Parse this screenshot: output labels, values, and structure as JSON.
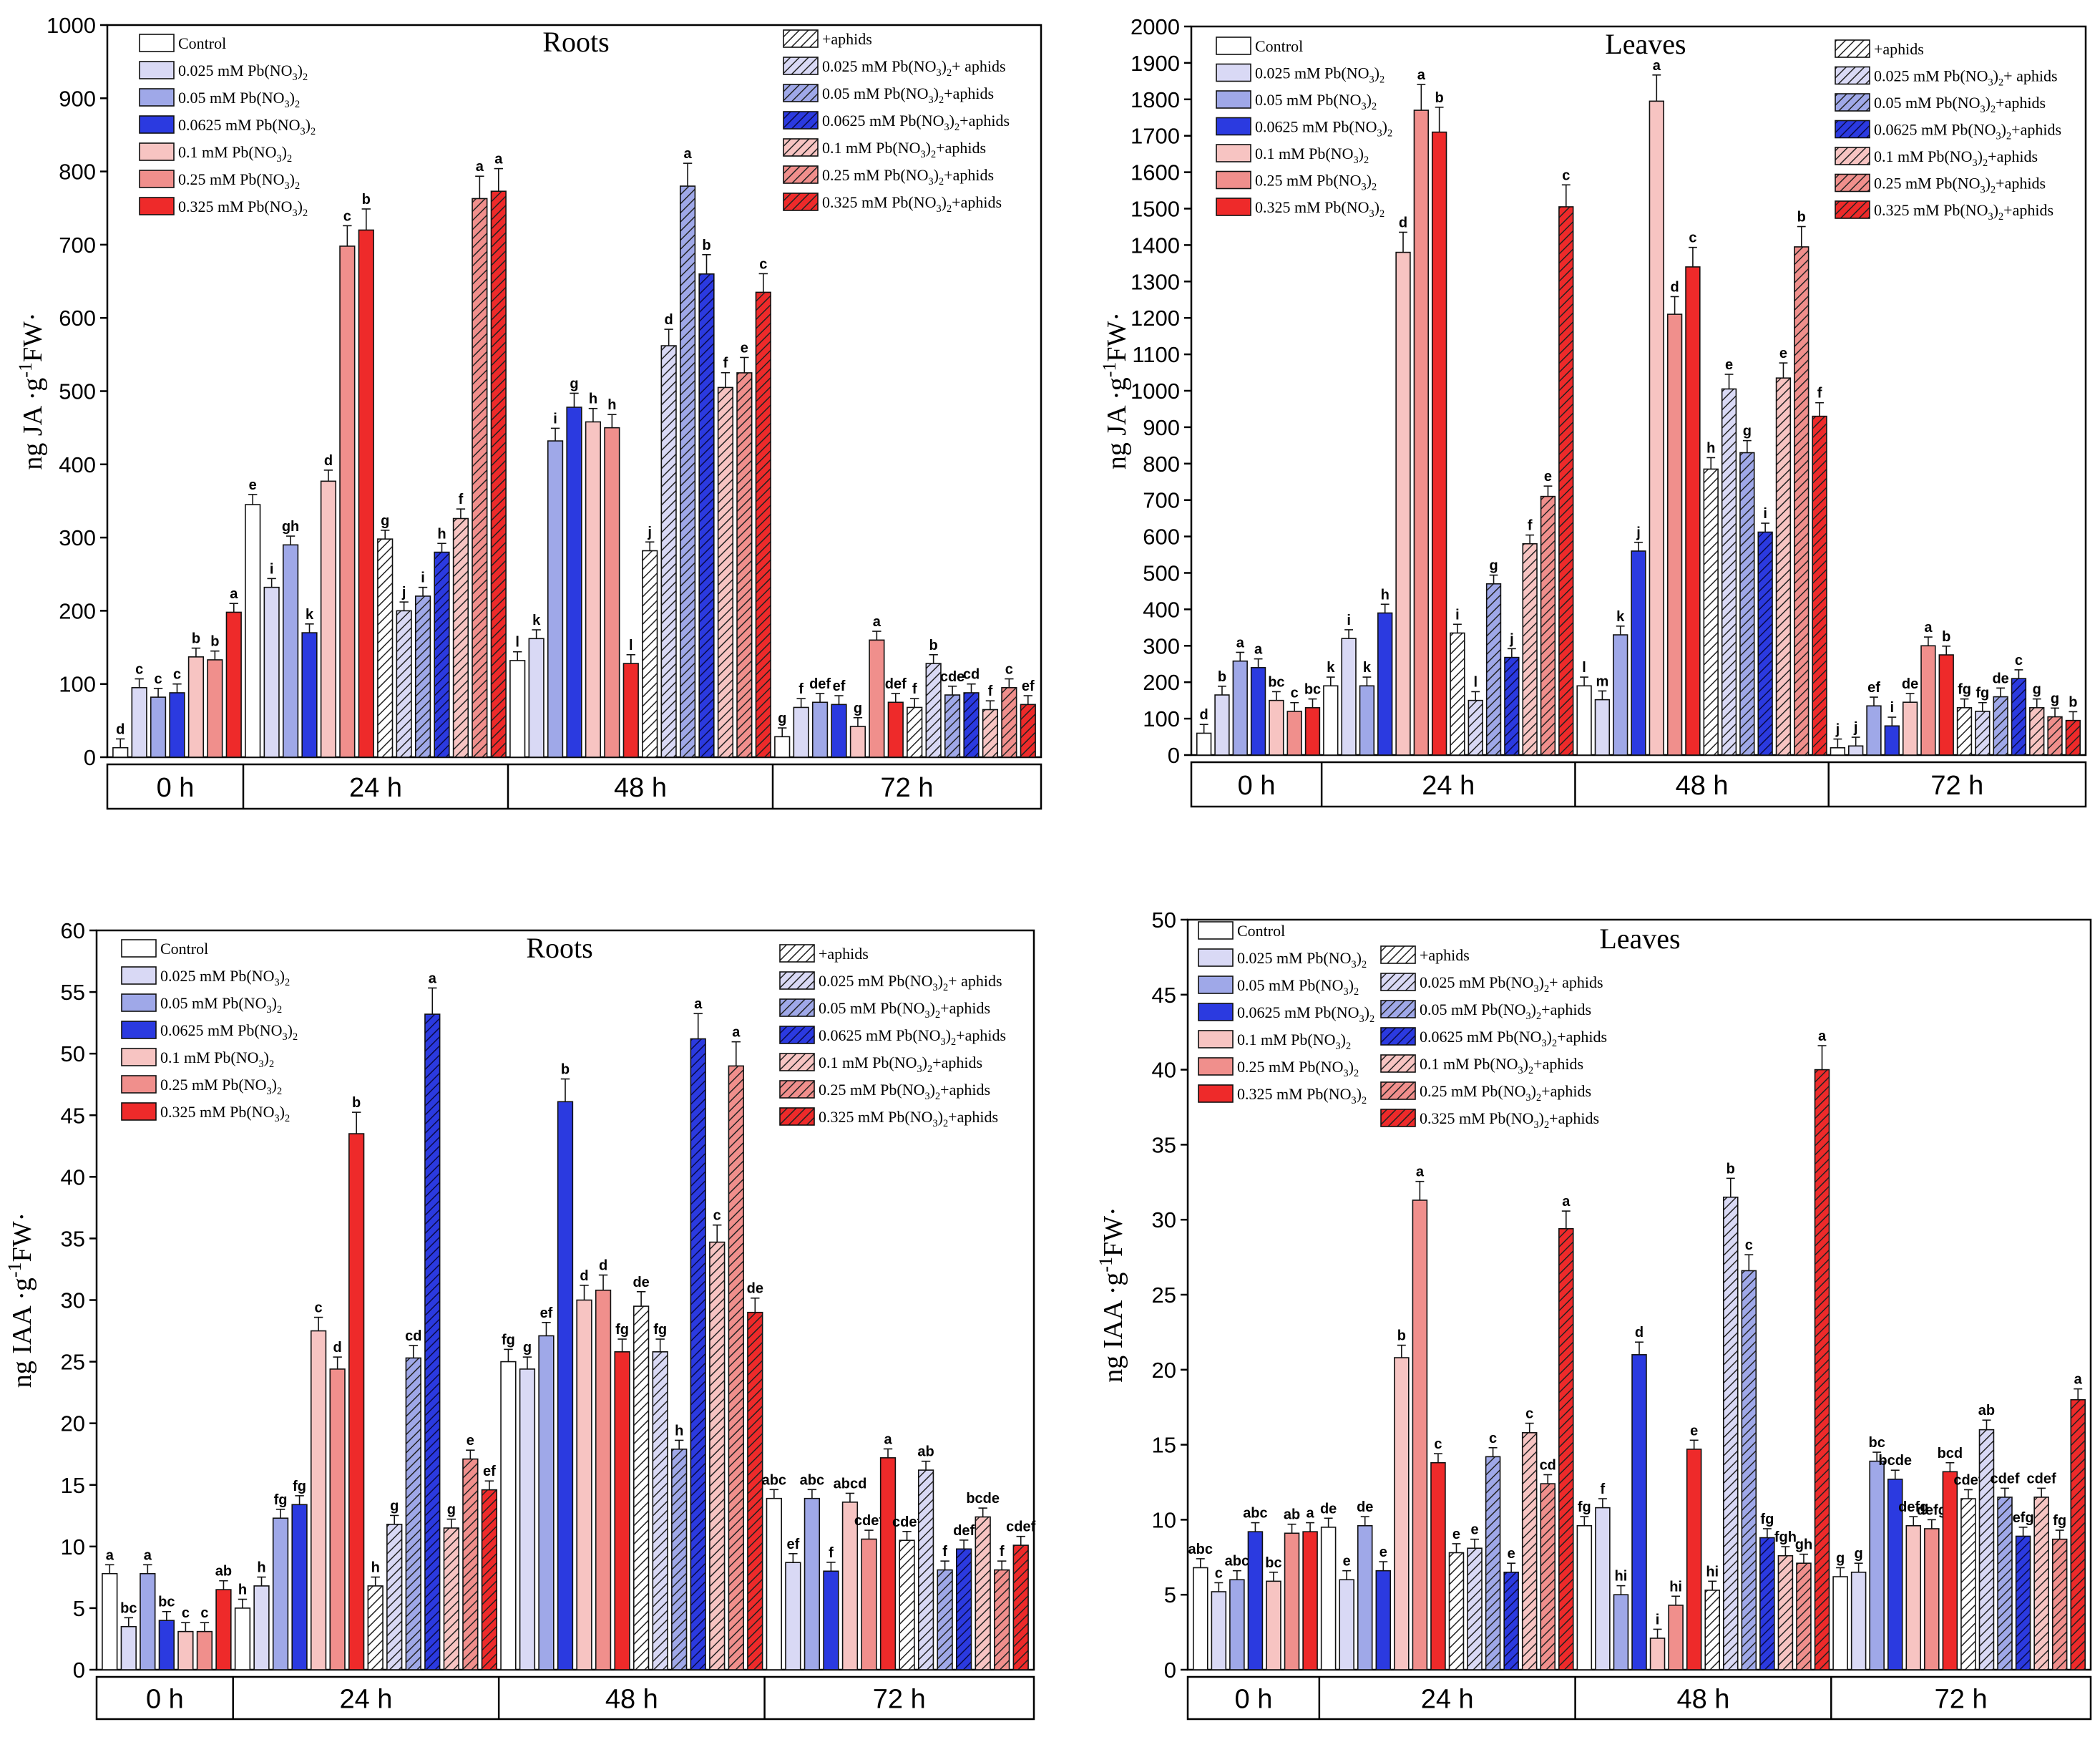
{
  "colors": {
    "control": "#ffffff",
    "c025": "#d9d9f5",
    "c05": "#9fa8e8",
    "c0625": "#2b3ae0",
    "c01": "#f7c4c2",
    "c025pb": "#f08f8c",
    "c0325": "#ee2a2a",
    "axis": "#000000"
  },
  "legend_left_labels": [
    "Control",
    "0.025 mM Pb(NO3)2",
    "0.05  mM Pb(NO3)2",
    "0.0625  mM Pb(NO3)2",
    "0.1  mM Pb(NO3)2",
    "0.25  mM Pb(NO3)2",
    "0.325  mM Pb(NO3)2"
  ],
  "legend_right_labels": [
    "+aphids",
    "0.025 mM Pb(NO3)2+ aphids",
    "0.05 mM Pb(NO3)2+aphids",
    "0.0625 mM Pb(NO3)2+aphids",
    "0.1 mM Pb(NO3)2+aphids",
    "0.25 mM Pb(NO3)2+aphids",
    "0.325 mM Pb(NO3)2+aphids"
  ],
  "time_labels": [
    "0 h",
    "24 h",
    "48 h",
    "72 h"
  ],
  "chart_data": [
    {
      "type": "bar",
      "title": "Roots",
      "ylabel": "ng JA ·g-1FW·",
      "ylim": [
        0,
        1000
      ],
      "ystep": 100,
      "groups": [
        "0 h",
        "24 h",
        "48 h",
        "72 h"
      ],
      "groups_bars": [
        7,
        14,
        14,
        14
      ],
      "values": [
        13,
        95,
        82,
        88,
        137,
        133,
        198,
        345,
        232,
        290,
        170,
        377,
        698,
        720,
        298,
        200,
        220,
        280,
        326,
        763,
        773,
        132,
        162,
        432,
        478,
        458,
        450,
        128,
        282,
        562,
        780,
        660,
        505,
        525,
        635,
        28,
        68,
        75,
        72,
        42,
        160,
        75,
        68,
        128,
        85,
        88,
        65,
        95,
        72
      ],
      "letters": [
        "d",
        "c",
        "c",
        "c",
        "b",
        "b",
        "a",
        "e",
        "i",
        "gh",
        "k",
        "d",
        "c",
        "b",
        "g",
        "j",
        "i",
        "h",
        "f",
        "a",
        "a",
        "l",
        "k",
        "i",
        "g",
        "h",
        "h",
        "l",
        "j",
        "d",
        "a",
        "b",
        "f",
        "e",
        "c",
        "g",
        "f",
        "def",
        "ef",
        "g",
        "a",
        "def",
        "f",
        "b",
        "cde",
        "cd",
        "f",
        "c",
        "ef"
      ]
    },
    {
      "type": "bar",
      "title": "Leaves",
      "ylabel": "ng JA ·g-1FW·",
      "ylim": [
        0,
        2000
      ],
      "ystep": 100,
      "groups": [
        "0 h",
        "24 h",
        "48 h",
        "72 h"
      ],
      "groups_bars": [
        7,
        14,
        14,
        14
      ],
      "values": [
        60,
        165,
        258,
        240,
        150,
        120,
        130,
        190,
        320,
        190,
        390,
        1380,
        1770,
        1710,
        335,
        150,
        470,
        268,
        580,
        710,
        1505,
        190,
        152,
        330,
        560,
        1795,
        1210,
        1340,
        785,
        1005,
        830,
        612,
        1035,
        1395,
        930,
        20,
        25,
        135,
        80,
        145,
        300,
        275,
        130,
        120,
        160,
        210,
        130,
        105,
        95
      ],
      "letters": [
        "d",
        "b",
        "a",
        "a",
        "bc",
        "c",
        "bc",
        "k",
        "i",
        "k",
        "h",
        "d",
        "a",
        "b",
        "i",
        "l",
        "g",
        "j",
        "f",
        "e",
        "c",
        "l",
        "m",
        "k",
        "j",
        "a",
        "d",
        "c",
        "h",
        "e",
        "g",
        "i",
        "e",
        "b",
        "f",
        "j",
        "j",
        "ef",
        "i",
        "de",
        "a",
        "b",
        "fg",
        "fg",
        "de",
        "c",
        "g",
        "g",
        "b"
      ]
    },
    {
      "type": "bar",
      "title": "Roots",
      "ylabel": "ng IAA ·g-1FW·",
      "ylim": [
        0,
        60
      ],
      "ystep": 5,
      "groups": [
        "0 h",
        "24 h",
        "48 h",
        "72 h"
      ],
      "groups_bars": [
        7,
        14,
        14,
        14
      ],
      "values": [
        7.8,
        3.5,
        7.8,
        4.0,
        3.1,
        3.1,
        6.5,
        5.0,
        6.8,
        12.3,
        13.4,
        27.5,
        24.4,
        43.5,
        6.8,
        11.8,
        25.3,
        53.2,
        11.5,
        17.1,
        14.6,
        25.0,
        24.4,
        27.1,
        46.1,
        30.0,
        30.8,
        25.8,
        29.5,
        25.8,
        17.9,
        51.2,
        34.7,
        49.0,
        29.0,
        13.9,
        8.7,
        13.9,
        8.0,
        13.6,
        10.6,
        17.2,
        10.5,
        16.2,
        8.1,
        9.8,
        12.4,
        8.1,
        10.1
      ],
      "letters": [
        "a",
        "bc",
        "a",
        "bc",
        "c",
        "c",
        "ab",
        "h",
        "h",
        "fg",
        "fg",
        "c",
        "d",
        "b",
        "h",
        "g",
        "cd",
        "a",
        "g",
        "e",
        "ef",
        "fg",
        "g",
        "ef",
        "b",
        "d",
        "d",
        "fg",
        "de",
        "fg",
        "h",
        "a",
        "c",
        "a",
        "de",
        "abc",
        "ef",
        "abc",
        "f",
        "abcd",
        "cdef",
        "a",
        "cdef",
        "ab",
        "f",
        "def",
        "bcde",
        "f",
        "cdef"
      ]
    },
    {
      "type": "bar",
      "title": "Leaves",
      "ylabel": "ng IAA ·g-1FW·",
      "ylim": [
        0,
        50
      ],
      "ystep": 5,
      "groups": [
        "0 h",
        "24 h",
        "48 h",
        "72 h"
      ],
      "groups_bars": [
        7,
        14,
        14,
        14
      ],
      "values": [
        6.8,
        5.2,
        6.0,
        9.2,
        5.9,
        9.1,
        9.2,
        9.5,
        6.0,
        9.6,
        6.6,
        20.8,
        31.3,
        13.8,
        7.8,
        8.1,
        14.2,
        6.5,
        15.8,
        12.4,
        29.4,
        9.6,
        10.8,
        5.0,
        21.0,
        2.1,
        4.3,
        14.7,
        5.3,
        31.5,
        26.6,
        8.8,
        7.6,
        7.1,
        40.0,
        6.2,
        6.5,
        13.9,
        12.7,
        9.6,
        9.4,
        13.2,
        11.4,
        16.0,
        11.5,
        8.9,
        11.5,
        8.7,
        18.0
      ],
      "letters": [
        "abc",
        "c",
        "abc",
        "abc",
        "bc",
        "ab",
        "a",
        "de",
        "e",
        "de",
        "e",
        "b",
        "a",
        "c",
        "e",
        "e",
        "c",
        "e",
        "c",
        "cd",
        "a",
        "fg",
        "f",
        "hi",
        "d",
        "i",
        "hi",
        "e",
        "hi",
        "b",
        "c",
        "fg",
        "fgh",
        "gh",
        "a",
        "g",
        "g",
        "bc",
        "bcde",
        "defg",
        "defg",
        "bcd",
        "cdef",
        "ab",
        "cdef",
        "efg",
        "cdef",
        "fg",
        "a"
      ]
    }
  ]
}
